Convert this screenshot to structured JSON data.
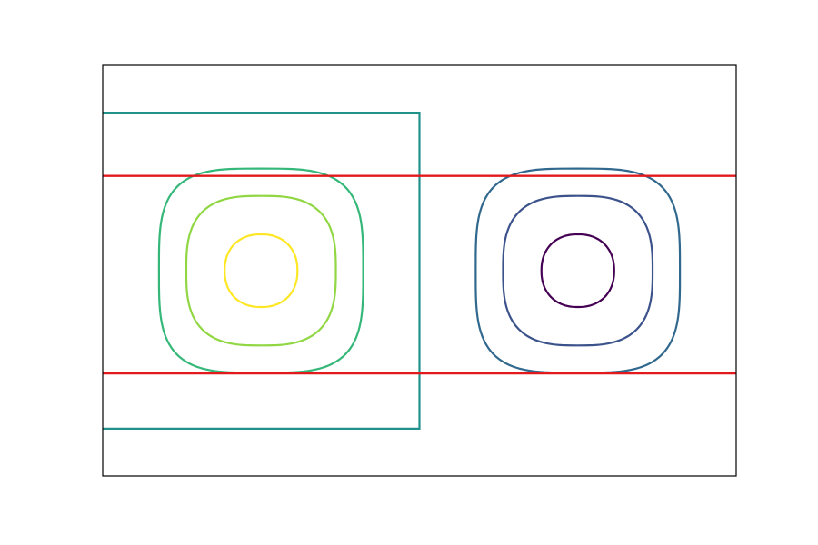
{
  "chart_data": {
    "type": "contour",
    "title": "",
    "xlabel": "",
    "ylabel": "",
    "axis_ticks_visible": false,
    "grid": false,
    "xlim": [
      -2,
      2
    ],
    "ylim": [
      -1.3,
      1.3
    ],
    "contour_levels": [
      {
        "level": -0.9,
        "color": "#440154",
        "group": "right",
        "center": [
          1,
          0
        ]
      },
      {
        "level": -0.6,
        "color": "#3b528b",
        "group": "right",
        "center": [
          1,
          0
        ]
      },
      {
        "level": -0.3,
        "color": "#31688e",
        "group": "right",
        "center": [
          1,
          0
        ]
      },
      {
        "level": 0.0,
        "color": "#21918c",
        "group": "boundary"
      },
      {
        "level": 0.3,
        "color": "#35b779",
        "group": "left",
        "center": [
          -1,
          0
        ]
      },
      {
        "level": 0.6,
        "color": "#90d743",
        "group": "left",
        "center": [
          -1,
          0
        ]
      },
      {
        "level": 0.9,
        "color": "#fde725",
        "group": "left",
        "center": [
          -1,
          0
        ]
      }
    ],
    "horizontal_lines": [
      {
        "y": 0.6,
        "color": "#e31a1c"
      },
      {
        "y": -0.65,
        "color": "#e31a1c"
      }
    ]
  }
}
